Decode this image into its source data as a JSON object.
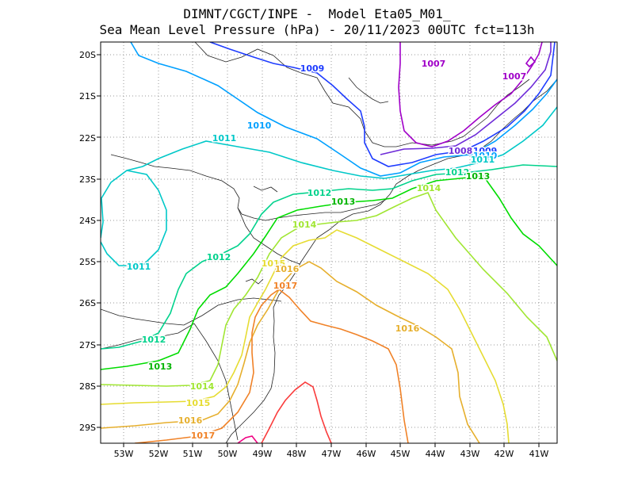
{
  "title": {
    "line1": "DIMNT/CGCT/INPE -  Model Eta05_M01_",
    "line2": "Sea Mean Level Pressure (hPa) - 20/11/2023 00UTC fct=113h"
  },
  "axes": {
    "lon_labels": [
      "53W",
      "52W",
      "51W",
      "50W",
      "49W",
      "48W",
      "47W",
      "46W",
      "45W",
      "44W",
      "43W",
      "42W",
      "41W"
    ],
    "lat_labels": [
      "20S",
      "21S",
      "22S",
      "23S",
      "24S",
      "25S",
      "26S",
      "27S",
      "28S",
      "29S"
    ]
  },
  "contour_labels": [
    "1007",
    "1007",
    "1008",
    "1009",
    "1009",
    "1010",
    "1010",
    "1011",
    "1011",
    "1011",
    "1012",
    "1012",
    "1012",
    "1012",
    "1013",
    "1013",
    "1013",
    "1014",
    "1014",
    "1014",
    "1015",
    "1015",
    "1016",
    "1016",
    "1016",
    "1017",
    "1017"
  ],
  "colors": {
    "c1007": "#a000c8",
    "c1008": "#6e2bd8",
    "c1009": "#1e3cff",
    "c1010": "#00a0ff",
    "c1011": "#00c8c8",
    "c1012": "#00d28c",
    "c1013": "#00dc00",
    "c1014": "#a0e632",
    "c1015": "#e6dc32",
    "c1016": "#e6af2d",
    "c1017": "#f08228",
    "c1018": "#fa3c3c",
    "c1019": "#f00082"
  }
}
